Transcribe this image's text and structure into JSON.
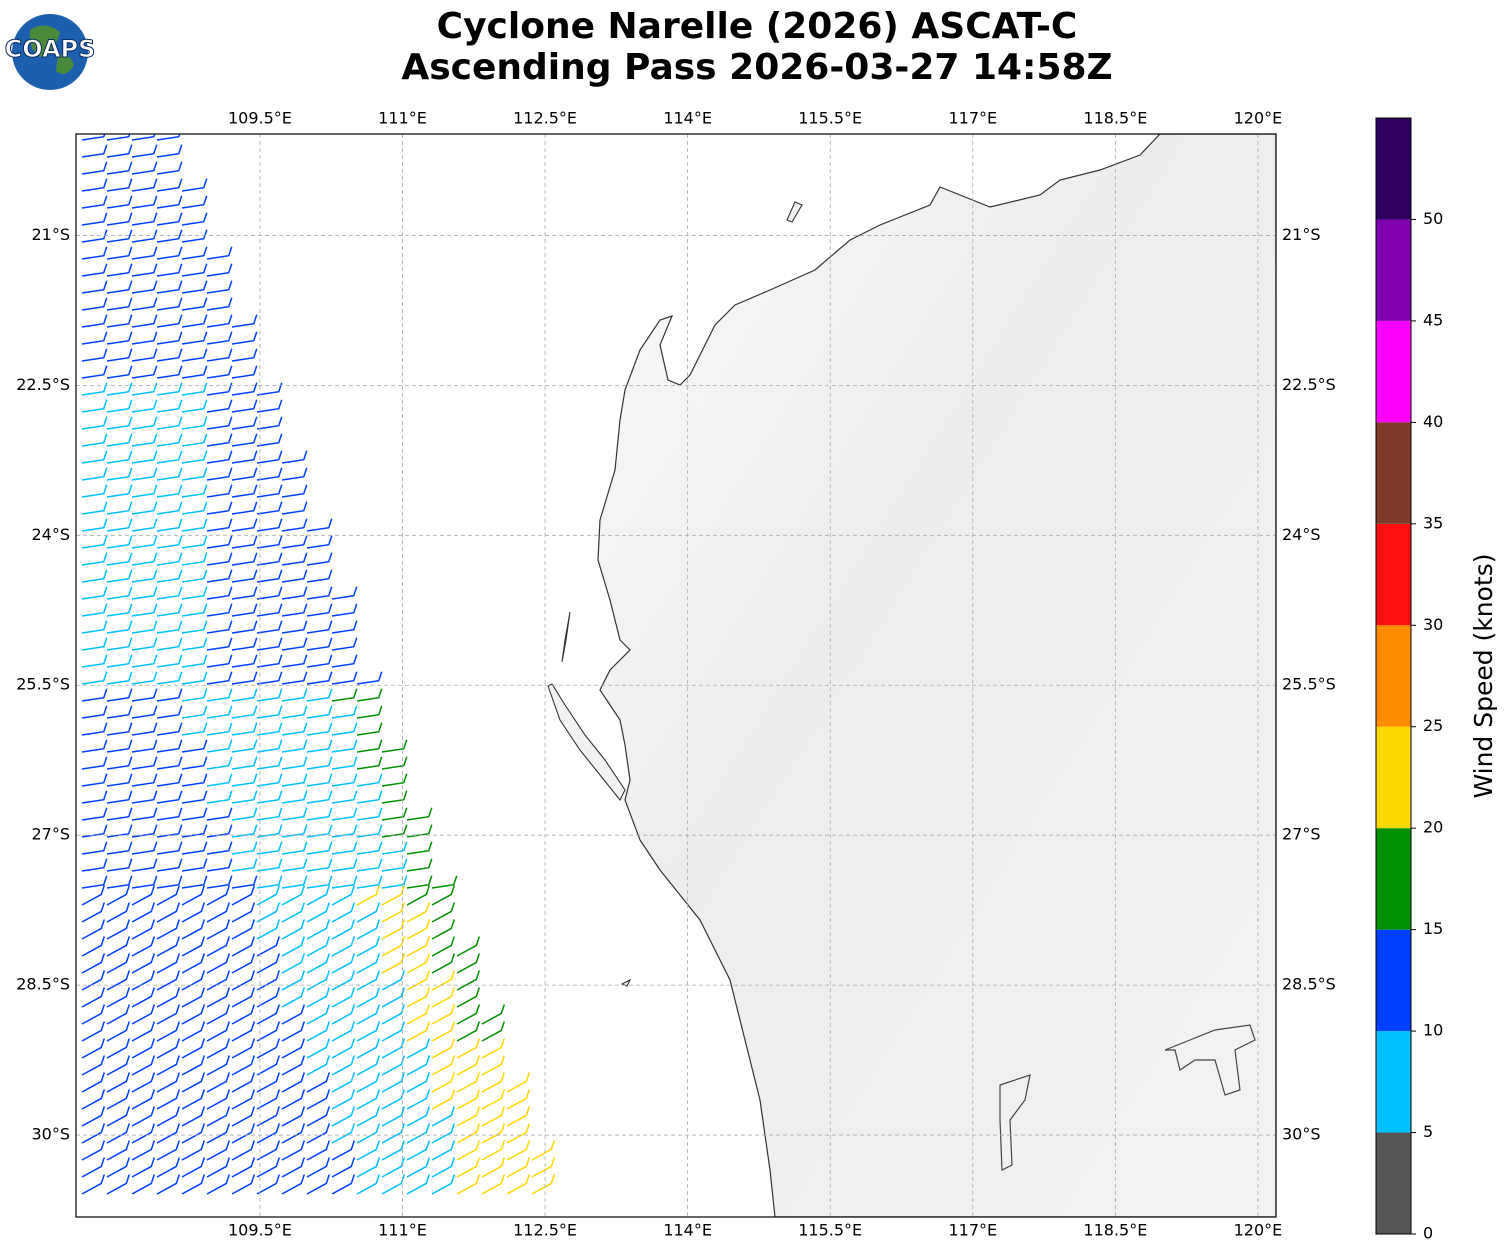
{
  "title": [
    "Cyclone Narelle (2026) ASCAT-C",
    "Ascending Pass 2026-03-27 14:58Z"
  ],
  "logo": "COAPS",
  "map": {
    "xlim": [
      107.565,
      120.19
    ],
    "ylim": [
      -30.82,
      -19.985
    ],
    "xticks": [
      {
        "value": 109.5,
        "label": "109.5°E"
      },
      {
        "value": 111,
        "label": "111°E"
      },
      {
        "value": 112.5,
        "label": "112.5°E"
      },
      {
        "value": 114,
        "label": "114°E"
      },
      {
        "value": 115.5,
        "label": "115.5°E"
      },
      {
        "value": 117,
        "label": "117°E"
      },
      {
        "value": 118.5,
        "label": "118.5°E"
      },
      {
        "value": 120,
        "label": "120°E"
      }
    ],
    "yticks": [
      {
        "value": -21,
        "label": "21°S"
      },
      {
        "value": -22.5,
        "label": "22.5°S"
      },
      {
        "value": -24,
        "label": "24°S"
      },
      {
        "value": -25.5,
        "label": "25.5°S"
      },
      {
        "value": -27,
        "label": "27°S"
      },
      {
        "value": -28.5,
        "label": "28.5°S"
      },
      {
        "value": -30,
        "label": "30°S"
      }
    ],
    "grid": true
  },
  "colorbar": {
    "label": "Wind Speed (knots)",
    "lim": [
      0,
      55
    ],
    "bounds": [
      0,
      5,
      10,
      15,
      20,
      25,
      30,
      35,
      40,
      45,
      50,
      55
    ],
    "colors": [
      "#555555",
      "#00bfff",
      "#0040ff",
      "#009000",
      "#ffd700",
      "#ff8c00",
      "#ff1010",
      "#7f3a2a",
      "#ff00ff",
      "#8000b0",
      "#2e0060"
    ],
    "ticks": [
      0,
      5,
      10,
      15,
      20,
      25,
      30,
      35,
      40,
      45,
      50
    ]
  }
}
